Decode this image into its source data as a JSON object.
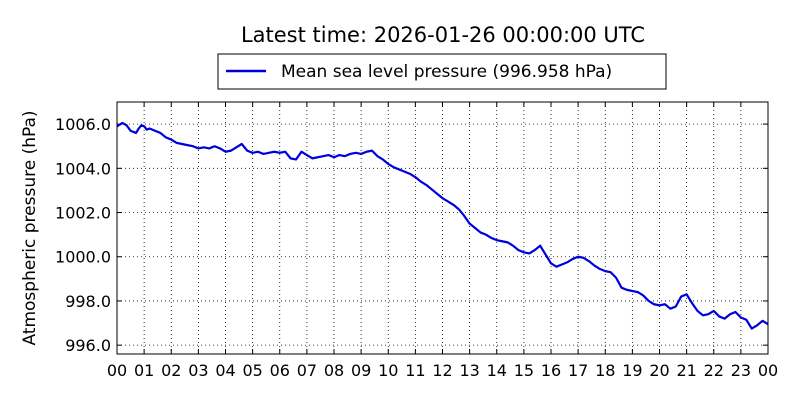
{
  "chart_data": {
    "type": "line",
    "title": "Latest time: 2026-01-26 00:00:00 UTC",
    "ylabel": "Atmospheric pressure (hPa)",
    "xlabel": "",
    "legend": {
      "placement": "top-center",
      "label": "Mean sea level pressure (996.958 hPa)"
    },
    "grid": true,
    "xlim": [
      0,
      24
    ],
    "ylim": [
      995.6,
      1007.0
    ],
    "x_ticks": [
      "00",
      "01",
      "02",
      "03",
      "04",
      "05",
      "06",
      "07",
      "08",
      "09",
      "10",
      "11",
      "12",
      "13",
      "14",
      "15",
      "16",
      "17",
      "18",
      "19",
      "20",
      "21",
      "22",
      "23",
      "00"
    ],
    "y_ticks": [
      996.0,
      998.0,
      1000.0,
      1002.0,
      1004.0,
      1006.0
    ],
    "series": [
      {
        "name": "Mean sea level pressure (996.958 hPa)",
        "color": "#0000dd",
        "x": [
          0.0,
          0.2,
          0.35,
          0.5,
          0.7,
          0.8,
          0.9,
          1.0,
          1.1,
          1.2,
          1.4,
          1.6,
          1.8,
          2.0,
          2.2,
          2.4,
          2.6,
          2.8,
          3.0,
          3.2,
          3.4,
          3.6,
          3.8,
          4.0,
          4.2,
          4.4,
          4.6,
          4.8,
          5.0,
          5.2,
          5.4,
          5.6,
          5.8,
          6.0,
          6.2,
          6.4,
          6.6,
          6.8,
          7.0,
          7.2,
          7.4,
          7.6,
          7.8,
          8.0,
          8.2,
          8.4,
          8.6,
          8.8,
          9.0,
          9.2,
          9.4,
          9.6,
          9.8,
          10.0,
          10.2,
          10.4,
          10.6,
          10.8,
          11.0,
          11.2,
          11.4,
          11.6,
          11.8,
          12.0,
          12.2,
          12.4,
          12.6,
          12.8,
          13.0,
          13.2,
          13.4,
          13.6,
          13.8,
          14.0,
          14.2,
          14.4,
          14.6,
          14.8,
          15.0,
          15.2,
          15.4,
          15.6,
          15.8,
          16.0,
          16.2,
          16.4,
          16.6,
          16.8,
          17.0,
          17.2,
          17.4,
          17.6,
          17.8,
          18.0,
          18.2,
          18.4,
          18.6,
          18.8,
          19.0,
          19.2,
          19.4,
          19.6,
          19.8,
          20.0,
          20.2,
          20.4,
          20.6,
          20.8,
          21.0,
          21.2,
          21.4,
          21.6,
          21.8,
          22.0,
          22.2,
          22.4,
          22.6,
          22.8,
          23.0,
          23.2,
          23.4,
          23.6,
          23.8,
          24.0
        ],
        "y": [
          1005.9,
          1006.05,
          1005.95,
          1005.7,
          1005.6,
          1005.8,
          1005.95,
          1005.9,
          1005.75,
          1005.8,
          1005.7,
          1005.6,
          1005.4,
          1005.3,
          1005.15,
          1005.1,
          1005.05,
          1005.0,
          1004.9,
          1004.95,
          1004.9,
          1005.0,
          1004.9,
          1004.75,
          1004.8,
          1004.95,
          1005.1,
          1004.8,
          1004.7,
          1004.75,
          1004.65,
          1004.7,
          1004.75,
          1004.7,
          1004.75,
          1004.45,
          1004.4,
          1004.75,
          1004.6,
          1004.45,
          1004.5,
          1004.55,
          1004.6,
          1004.5,
          1004.6,
          1004.55,
          1004.65,
          1004.7,
          1004.65,
          1004.75,
          1004.8,
          1004.55,
          1004.4,
          1004.2,
          1004.05,
          1003.95,
          1003.85,
          1003.75,
          1003.6,
          1003.4,
          1003.25,
          1003.05,
          1002.85,
          1002.65,
          1002.5,
          1002.35,
          1002.15,
          1001.85,
          1001.5,
          1001.3,
          1001.1,
          1001.0,
          1000.85,
          1000.75,
          1000.7,
          1000.65,
          1000.5,
          1000.3,
          1000.2,
          1000.15,
          1000.3,
          1000.5,
          1000.1,
          999.7,
          999.55,
          999.65,
          999.75,
          999.9,
          1000.0,
          999.95,
          999.8,
          999.6,
          999.45,
          999.35,
          999.3,
          999.05,
          998.6,
          998.5,
          998.45,
          998.4,
          998.25,
          998.0,
          997.85,
          997.8,
          997.85,
          997.65,
          997.75,
          998.2,
          998.3,
          997.9,
          997.55,
          997.35,
          997.4,
          997.55,
          997.3,
          997.2,
          997.4,
          997.5,
          997.25,
          997.15,
          996.75,
          996.9,
          997.1,
          996.95
        ]
      }
    ]
  }
}
